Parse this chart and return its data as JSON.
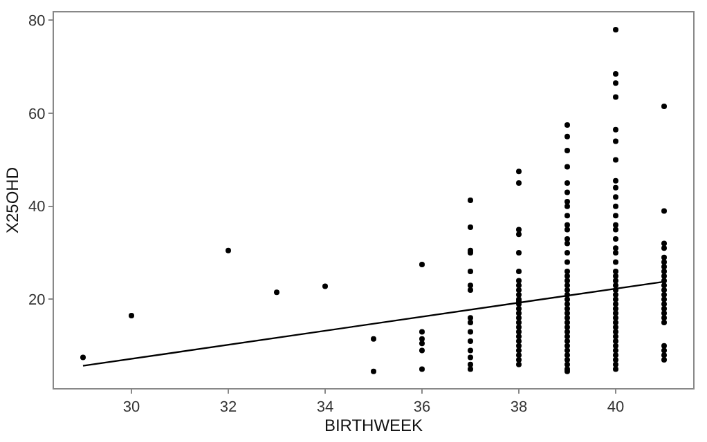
{
  "chart_data": {
    "type": "scatter",
    "xlabel": "BIRTHWEEK",
    "ylabel": "X25OHD",
    "xlim": [
      28.4,
      41.6
    ],
    "xticks": [
      30,
      32,
      34,
      36,
      38,
      40
    ],
    "ylim": [
      0.9,
      81.7
    ],
    "yticks": [
      20,
      40,
      60,
      80
    ],
    "marker": "circle",
    "series": [
      {
        "color": "#000000",
        "x": [
          29,
          30,
          32,
          33,
          34,
          35,
          35,
          36,
          36,
          36,
          36,
          36,
          36,
          37,
          37,
          37,
          37,
          37,
          37,
          37,
          37,
          37,
          37,
          37,
          37,
          37,
          37,
          37,
          38,
          38,
          38,
          38,
          38,
          38,
          38,
          38,
          38,
          38,
          38,
          38,
          38,
          38,
          38,
          38,
          38,
          38,
          38,
          38,
          38,
          38,
          38,
          38,
          38,
          38,
          39,
          39,
          39,
          39,
          39,
          39,
          39,
          39,
          39,
          39,
          39,
          39,
          39,
          39,
          39,
          39,
          39,
          39,
          39,
          39,
          39,
          39,
          39,
          39,
          39,
          39,
          39,
          39,
          39,
          39,
          39,
          39,
          39,
          39,
          39,
          39,
          39,
          39,
          40,
          40,
          40,
          40,
          40,
          40,
          40,
          40,
          40,
          40,
          40,
          40,
          40,
          40,
          40,
          40,
          40,
          40,
          40,
          40,
          40,
          40,
          40,
          40,
          40,
          40,
          40,
          40,
          40,
          40,
          40,
          40,
          40,
          40,
          40,
          40,
          40,
          40,
          40,
          40,
          41,
          41,
          41,
          41,
          41,
          41,
          41,
          41,
          41,
          41,
          41,
          41,
          41,
          41,
          41,
          41,
          41,
          41,
          41,
          41,
          41,
          41,
          41
        ],
        "values": [
          7.5,
          16.5,
          30.5,
          21.5,
          22.8,
          11.5,
          4.5,
          27.5,
          13,
          11.5,
          10.5,
          9,
          5,
          41.3,
          35.5,
          30.5,
          30,
          26,
          23,
          22,
          16,
          15,
          13,
          11,
          9,
          7.5,
          6,
          5,
          47.5,
          45,
          35,
          34,
          30,
          26,
          24,
          23,
          22,
          21,
          20,
          19.5,
          19,
          18,
          17,
          16,
          15,
          14,
          13,
          12,
          11,
          10,
          9,
          8,
          7,
          6,
          57.5,
          55,
          52,
          48.5,
          45,
          43,
          41,
          40,
          38,
          36,
          35,
          33,
          32,
          30,
          28,
          26,
          25,
          24,
          23,
          22,
          21,
          20,
          19,
          18,
          17,
          16,
          15,
          14,
          13,
          12,
          11,
          10,
          9,
          8,
          7,
          6,
          5,
          4.5,
          78,
          68.5,
          66.5,
          63.5,
          56.5,
          54,
          50,
          45.5,
          44,
          42,
          40,
          38,
          36,
          35,
          33,
          31,
          30,
          28,
          26,
          25,
          24,
          23,
          22,
          21,
          20,
          19,
          18,
          17,
          16,
          15,
          14,
          13,
          12,
          11,
          10,
          9,
          8,
          7,
          6,
          5,
          61.5,
          39,
          32,
          31,
          29,
          28,
          27,
          26,
          25,
          24,
          23,
          22,
          21,
          20,
          19,
          18,
          17,
          16,
          15,
          10,
          9,
          8,
          7
        ]
      },
      {
        "type": "line",
        "color": "#000000",
        "marker": "none",
        "line_style": "solid",
        "x": [
          29,
          41
        ],
        "values": [
          5.7,
          23.8
        ]
      }
    ]
  }
}
